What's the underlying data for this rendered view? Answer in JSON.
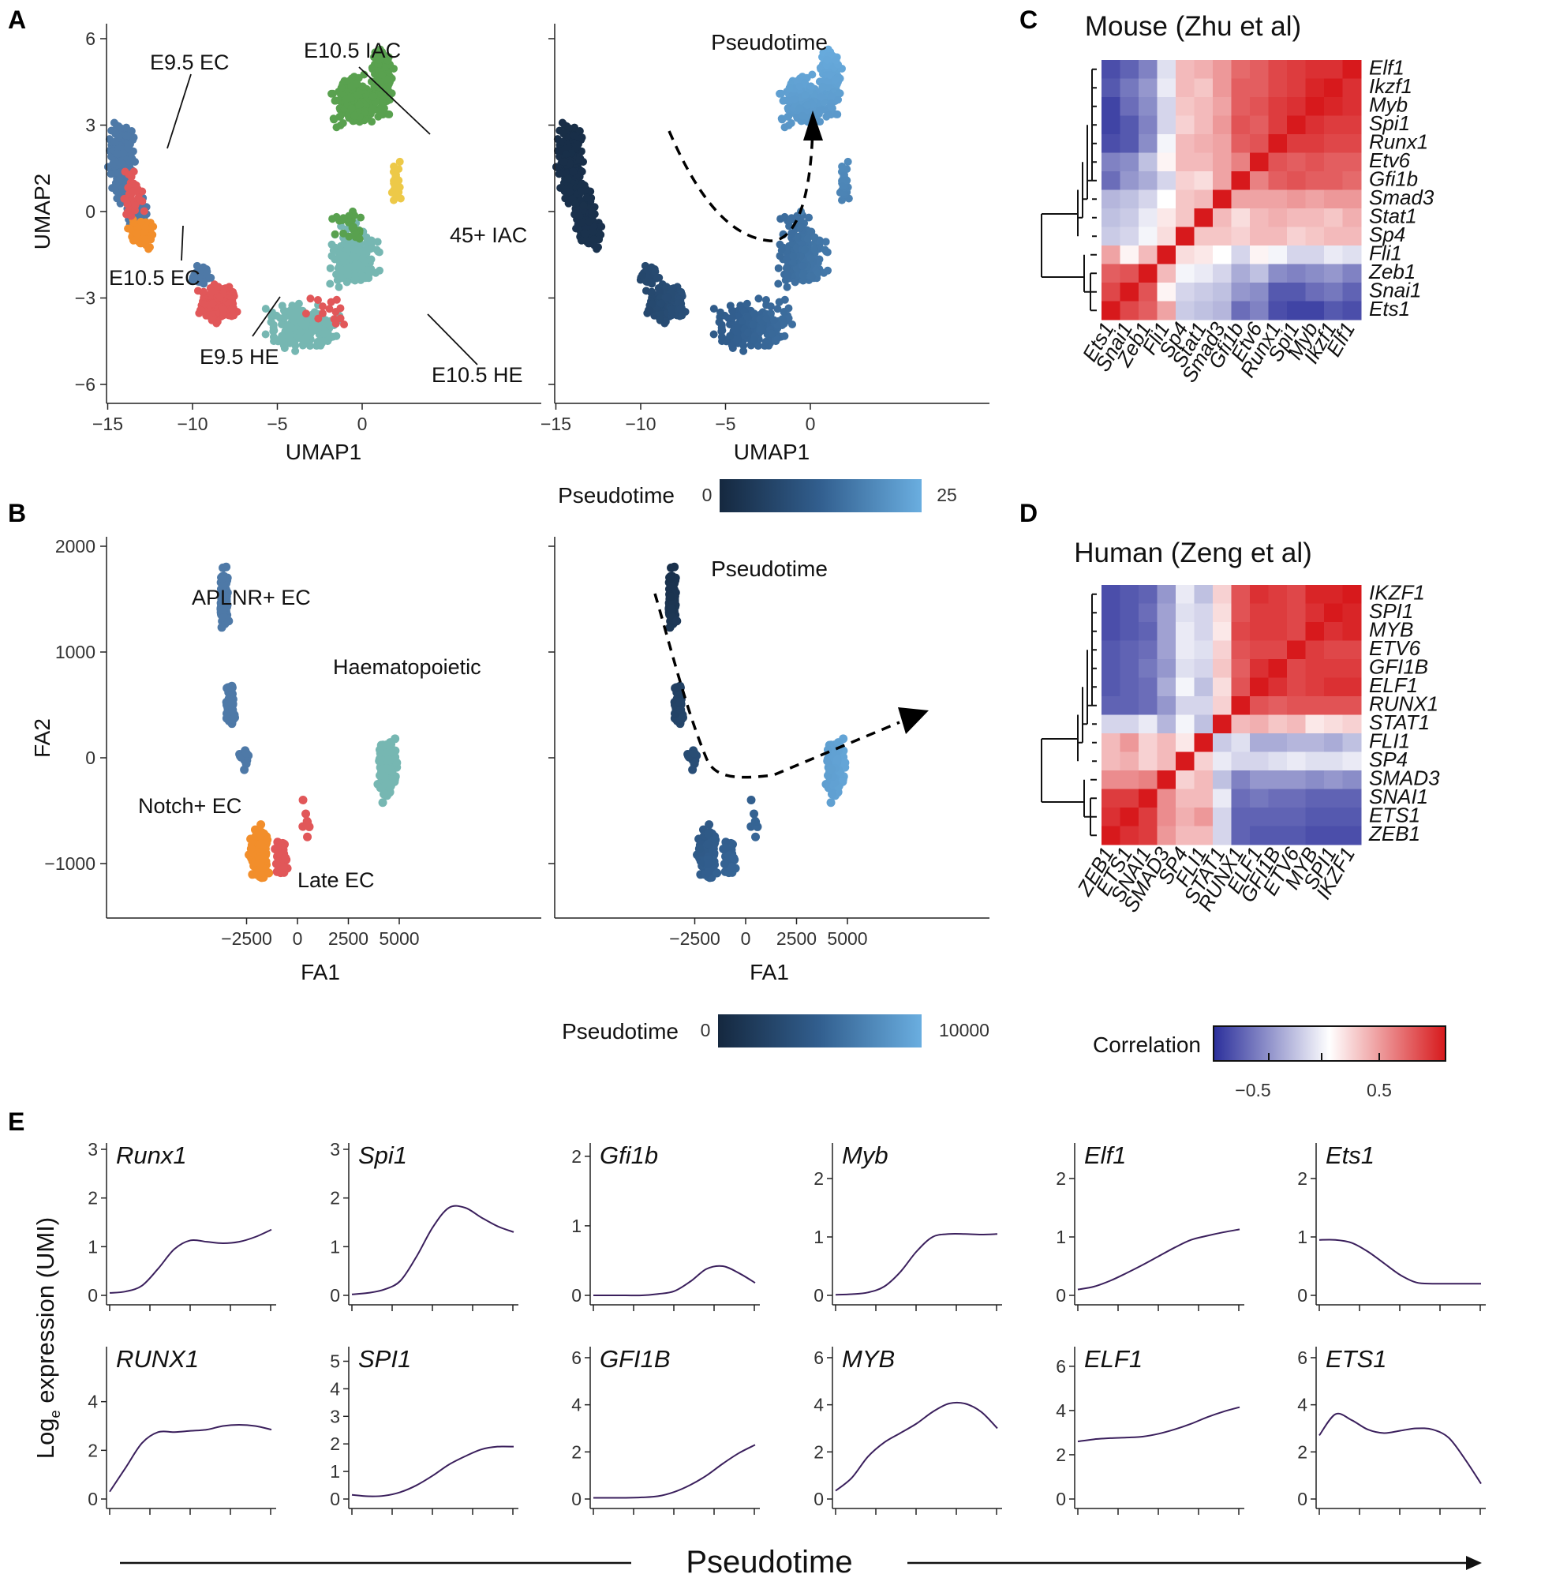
{
  "panels": {
    "A": "A",
    "B": "B",
    "C": "C",
    "D": "D",
    "E": "E"
  },
  "umap": {
    "xlabel": "UMAP1",
    "ylabel": "UMAP2",
    "xticks": [
      "−15",
      "−10",
      "−5",
      "0"
    ],
    "yticks": [
      "6",
      "3",
      "0",
      "−3",
      "−6"
    ],
    "clusters": [
      {
        "label": "E9.5 EC",
        "color": "#4e79a7"
      },
      {
        "label": "E10.5 IAC",
        "color": "#59a14f"
      },
      {
        "label": "45+ IAC",
        "color": "#edc948"
      },
      {
        "label": "E10.5 EC",
        "color": "#f28e2b"
      },
      {
        "label": "E9.5 HE",
        "color": "#e15759"
      },
      {
        "label": "E10.5 HE",
        "color": "#76b7b2"
      }
    ],
    "pseudotime_title": "Pseudotime",
    "colorbar": {
      "title": "Pseudotime",
      "min": "0",
      "max": "25"
    }
  },
  "fa": {
    "xlabel": "FA1",
    "ylabel": "FA2",
    "xticks": [
      "−2500",
      "0",
      "2500",
      "5000"
    ],
    "yticks": [
      "2000",
      "1000",
      "0",
      "−1000"
    ],
    "clusters": [
      {
        "label": "APLNR+ EC",
        "color": "#4e79a7"
      },
      {
        "label": "Haematopoietic",
        "color": "#76b7b2"
      },
      {
        "label": "Notch+ EC",
        "color": "#f28e2b"
      },
      {
        "label": "Late EC",
        "color": "#e15759"
      }
    ],
    "pseudotime_title": "Pseudotime",
    "colorbar": {
      "title": "Pseudotime",
      "min": "0",
      "max": "10000"
    }
  },
  "colors": {
    "pt_dark": "#15283f",
    "pt_light": "#6aaee0",
    "corr_neg": "#2b2f9b",
    "corr_pos": "#d7191c",
    "line": "#3a1f5c"
  },
  "chart_data": [
    {
      "type": "heatmap",
      "title": "Mouse (Zhu et al)",
      "legend": {
        "title": "Correlation",
        "ticks": [
          "−0.5",
          "0.5"
        ],
        "range": [
          -1,
          1
        ]
      },
      "rows": [
        "Elf1",
        "Ikzf1",
        "Myb",
        "Spi1",
        "Runx1",
        "Etv6",
        "Gfi1b",
        "Smad3",
        "Stat1",
        "Sp4",
        "Fli1",
        "Zeb1",
        "Snai1",
        "Ets1"
      ],
      "columns": [
        "Ets1",
        "Snai1",
        "Zeb1",
        "Fli1",
        "Sp4",
        "Stat1",
        "Smad3",
        "Gfi1b",
        "Etv6",
        "Runx1",
        "Spi1",
        "Myb",
        "Ikzf1",
        "Elf1"
      ],
      "values": [
        [
          -0.85,
          -0.75,
          -0.6,
          -0.15,
          0.3,
          0.35,
          0.45,
          0.65,
          0.7,
          0.8,
          0.85,
          0.9,
          0.9,
          1.0
        ],
        [
          -0.8,
          -0.65,
          -0.5,
          -0.1,
          0.3,
          0.25,
          0.45,
          0.7,
          0.7,
          0.8,
          0.85,
          0.95,
          1.0,
          0.9
        ],
        [
          -0.9,
          -0.7,
          -0.55,
          -0.2,
          0.25,
          0.3,
          0.4,
          0.7,
          0.75,
          0.85,
          0.9,
          1.0,
          0.95,
          0.9
        ],
        [
          -0.9,
          -0.8,
          -0.6,
          -0.2,
          0.2,
          0.3,
          0.45,
          0.75,
          0.7,
          0.85,
          1.0,
          0.9,
          0.85,
          0.85
        ],
        [
          -0.85,
          -0.8,
          -0.55,
          -0.05,
          0.3,
          0.35,
          0.4,
          0.7,
          0.75,
          1.0,
          0.85,
          0.85,
          0.8,
          0.8
        ],
        [
          -0.6,
          -0.55,
          -0.3,
          0.05,
          0.3,
          0.3,
          0.4,
          0.55,
          1.0,
          0.75,
          0.7,
          0.75,
          0.7,
          0.7
        ],
        [
          -0.7,
          -0.5,
          -0.4,
          -0.2,
          0.2,
          0.15,
          0.4,
          1.0,
          0.55,
          0.7,
          0.75,
          0.7,
          0.7,
          0.65
        ],
        [
          -0.35,
          -0.3,
          -0.2,
          0.0,
          0.25,
          0.3,
          1.0,
          0.4,
          0.4,
          0.4,
          0.45,
          0.4,
          0.45,
          0.45
        ],
        [
          -0.3,
          -0.25,
          -0.1,
          0.1,
          0.25,
          1.0,
          0.3,
          0.15,
          0.3,
          0.35,
          0.3,
          0.3,
          0.25,
          0.35
        ],
        [
          -0.25,
          -0.2,
          -0.05,
          0.15,
          1.0,
          0.25,
          0.25,
          0.2,
          0.3,
          0.3,
          0.2,
          0.25,
          0.3,
          0.3
        ],
        [
          0.4,
          0.05,
          0.3,
          1.0,
          0.15,
          0.1,
          0.0,
          -0.2,
          0.05,
          -0.05,
          -0.2,
          -0.2,
          -0.1,
          -0.15
        ],
        [
          0.7,
          0.75,
          1.0,
          0.3,
          -0.05,
          -0.1,
          -0.2,
          -0.4,
          -0.3,
          -0.55,
          -0.6,
          -0.55,
          -0.5,
          -0.6
        ],
        [
          0.8,
          1.0,
          0.75,
          0.05,
          -0.2,
          -0.25,
          -0.3,
          -0.5,
          -0.55,
          -0.8,
          -0.8,
          -0.7,
          -0.65,
          -0.75
        ],
        [
          1.0,
          0.8,
          0.7,
          0.4,
          -0.25,
          -0.3,
          -0.35,
          -0.7,
          -0.6,
          -0.85,
          -0.9,
          -0.9,
          -0.8,
          -0.85
        ]
      ]
    },
    {
      "type": "heatmap",
      "title": "Human (Zeng et al)",
      "rows": [
        "IKZF1",
        "SPI1",
        "MYB",
        "ETV6",
        "GFI1B",
        "ELF1",
        "RUNX1",
        "STAT1",
        "FLI1",
        "SP4",
        "SMAD3",
        "SNAI1",
        "ETS1",
        "ZEB1"
      ],
      "columns": [
        "ZEB1",
        "ETS1",
        "SNAI1",
        "SMAD3",
        "SP4",
        "FLI1",
        "STAT1",
        "RUNX1",
        "ELF1",
        "GFI1B",
        "ETV6",
        "MYB",
        "SPI1",
        "IKZF1"
      ],
      "values": [
        [
          -0.85,
          -0.8,
          -0.75,
          -0.5,
          -0.1,
          -0.3,
          0.2,
          0.75,
          0.9,
          0.85,
          0.8,
          0.95,
          0.95,
          1.0
        ],
        [
          -0.85,
          -0.8,
          -0.7,
          -0.45,
          -0.15,
          -0.2,
          0.15,
          0.75,
          0.85,
          0.85,
          0.8,
          0.9,
          1.0,
          0.95
        ],
        [
          -0.85,
          -0.8,
          -0.75,
          -0.45,
          -0.1,
          -0.2,
          0.1,
          0.8,
          0.85,
          0.85,
          0.8,
          1.0,
          0.9,
          0.95
        ],
        [
          -0.8,
          -0.75,
          -0.7,
          -0.45,
          -0.1,
          -0.15,
          0.2,
          0.75,
          0.8,
          0.8,
          1.0,
          0.85,
          0.8,
          0.8
        ],
        [
          -0.8,
          -0.75,
          -0.65,
          -0.5,
          -0.15,
          -0.2,
          0.25,
          0.7,
          0.9,
          1.0,
          0.8,
          0.85,
          0.85,
          0.85
        ],
        [
          -0.8,
          -0.75,
          -0.7,
          -0.4,
          -0.05,
          -0.3,
          0.15,
          0.75,
          1.0,
          0.9,
          0.8,
          0.85,
          0.9,
          0.9
        ],
        [
          -0.75,
          -0.75,
          -0.7,
          -0.5,
          -0.2,
          -0.2,
          0.2,
          1.0,
          0.75,
          0.7,
          0.75,
          0.75,
          0.75,
          0.75
        ],
        [
          -0.2,
          -0.2,
          -0.1,
          -0.35,
          -0.05,
          -0.3,
          1.0,
          0.3,
          0.35,
          0.25,
          0.3,
          0.1,
          0.15,
          0.2
        ],
        [
          0.3,
          0.45,
          0.2,
          0.3,
          0.1,
          1.0,
          -0.25,
          -0.15,
          -0.4,
          -0.4,
          -0.35,
          -0.35,
          -0.4,
          -0.3
        ],
        [
          0.3,
          0.35,
          0.2,
          0.3,
          1.0,
          0.2,
          -0.1,
          -0.2,
          -0.2,
          -0.15,
          -0.1,
          -0.15,
          -0.15,
          -0.1
        ],
        [
          0.5,
          0.5,
          0.55,
          1.0,
          0.2,
          0.3,
          -0.3,
          -0.6,
          -0.5,
          -0.5,
          -0.5,
          -0.55,
          -0.5,
          -0.55
        ],
        [
          0.85,
          0.85,
          1.0,
          0.5,
          0.3,
          0.3,
          -0.1,
          -0.7,
          -0.65,
          -0.7,
          -0.7,
          -0.75,
          -0.75,
          -0.75
        ],
        [
          0.9,
          1.0,
          0.85,
          0.5,
          0.35,
          0.45,
          -0.2,
          -0.75,
          -0.75,
          -0.75,
          -0.75,
          -0.8,
          -0.8,
          -0.8
        ],
        [
          1.0,
          0.9,
          0.85,
          0.45,
          0.3,
          0.3,
          -0.2,
          -0.75,
          -0.8,
          -0.8,
          -0.8,
          -0.85,
          -0.85,
          -0.85
        ]
      ]
    },
    {
      "type": "line",
      "xlabel": "Pseudotime",
      "ylabel": "Log",
      "ylabel_sub": "e",
      "ylabel_rest": " expression (UMI)",
      "x": [
        0,
        0.1,
        0.2,
        0.3,
        0.4,
        0.5,
        0.6,
        0.7,
        0.8,
        0.9,
        1.0
      ],
      "panels": [
        {
          "gene": "Runx1",
          "ymax": 3,
          "yticks": [
            "0",
            "1",
            "2",
            "3"
          ],
          "tickvals": [
            0,
            1,
            2,
            3
          ],
          "y": [
            0.05,
            0.08,
            0.2,
            0.55,
            0.95,
            1.13,
            1.1,
            1.07,
            1.1,
            1.2,
            1.35
          ]
        },
        {
          "gene": "Spi1",
          "ymax": 3,
          "yticks": [
            "0",
            "1",
            "2",
            "3"
          ],
          "tickvals": [
            0,
            1,
            2,
            3
          ],
          "y": [
            0.02,
            0.05,
            0.12,
            0.3,
            0.8,
            1.4,
            1.8,
            1.8,
            1.6,
            1.42,
            1.3
          ]
        },
        {
          "gene": "Gfi1b",
          "ymax": 2.1,
          "yticks": [
            "0",
            "1",
            "2"
          ],
          "tickvals": [
            0,
            1,
            2
          ],
          "y": [
            0.0,
            0.0,
            0.0,
            0.0,
            0.02,
            0.06,
            0.2,
            0.38,
            0.42,
            0.32,
            0.18
          ]
        },
        {
          "gene": "Myb",
          "ymax": 2.5,
          "yticks": [
            "0",
            "1",
            "2"
          ],
          "tickvals": [
            0,
            1,
            2
          ],
          "y": [
            0.01,
            0.02,
            0.05,
            0.15,
            0.4,
            0.75,
            1.0,
            1.05,
            1.05,
            1.04,
            1.05
          ]
        },
        {
          "gene": "Elf1",
          "ymax": 2.5,
          "yticks": [
            "0",
            "1",
            "2"
          ],
          "tickvals": [
            0,
            1,
            2
          ],
          "y": [
            0.1,
            0.15,
            0.25,
            0.38,
            0.52,
            0.67,
            0.82,
            0.95,
            1.02,
            1.08,
            1.13
          ]
        },
        {
          "gene": "Ets1",
          "ymax": 2.5,
          "yticks": [
            "0",
            "1",
            "2"
          ],
          "tickvals": [
            0,
            1,
            2
          ],
          "y": [
            0.95,
            0.95,
            0.9,
            0.75,
            0.55,
            0.35,
            0.22,
            0.2,
            0.2,
            0.2,
            0.2
          ]
        },
        {
          "gene": "RUNX1",
          "ymax": 6,
          "yticks": [
            "0",
            "2",
            "4"
          ],
          "tickvals": [
            0,
            2,
            4
          ],
          "y": [
            0.3,
            1.3,
            2.3,
            2.75,
            2.75,
            2.8,
            2.85,
            3.0,
            3.05,
            3.0,
            2.85
          ]
        },
        {
          "gene": "SPI1",
          "ymax": 5.3,
          "yticks": [
            "0",
            "1",
            "2",
            "3",
            "4",
            "5"
          ],
          "tickvals": [
            0,
            1,
            2,
            3,
            4,
            5
          ],
          "y": [
            0.15,
            0.1,
            0.12,
            0.25,
            0.5,
            0.85,
            1.25,
            1.55,
            1.8,
            1.9,
            1.9
          ]
        },
        {
          "gene": "GFI1B",
          "ymax": 6.2,
          "yticks": [
            "0",
            "2",
            "4",
            "6"
          ],
          "tickvals": [
            0,
            2,
            4,
            6
          ],
          "y": [
            0.05,
            0.05,
            0.05,
            0.07,
            0.12,
            0.3,
            0.6,
            1.0,
            1.5,
            1.95,
            2.3
          ]
        },
        {
          "gene": "MYB",
          "ymax": 6.2,
          "yticks": [
            "0",
            "2",
            "4",
            "6"
          ],
          "tickvals": [
            0,
            2,
            4,
            6
          ],
          "y": [
            0.35,
            0.9,
            1.8,
            2.4,
            2.8,
            3.2,
            3.7,
            4.05,
            4.05,
            3.7,
            3.0
          ]
        },
        {
          "gene": "ELF1",
          "ymax": 6.6,
          "yticks": [
            "0",
            "2",
            "4",
            "6"
          ],
          "tickvals": [
            0,
            2,
            4,
            6
          ],
          "y": [
            2.6,
            2.7,
            2.75,
            2.78,
            2.82,
            2.95,
            3.15,
            3.4,
            3.7,
            3.95,
            4.15
          ]
        },
        {
          "gene": "ETS1",
          "ymax": 6.2,
          "yticks": [
            "0",
            "2",
            "4",
            "6"
          ],
          "tickvals": [
            0,
            2,
            4,
            6
          ],
          "y": [
            2.7,
            3.6,
            3.35,
            2.95,
            2.8,
            2.9,
            3.0,
            2.95,
            2.6,
            1.7,
            0.65
          ]
        }
      ]
    }
  ]
}
